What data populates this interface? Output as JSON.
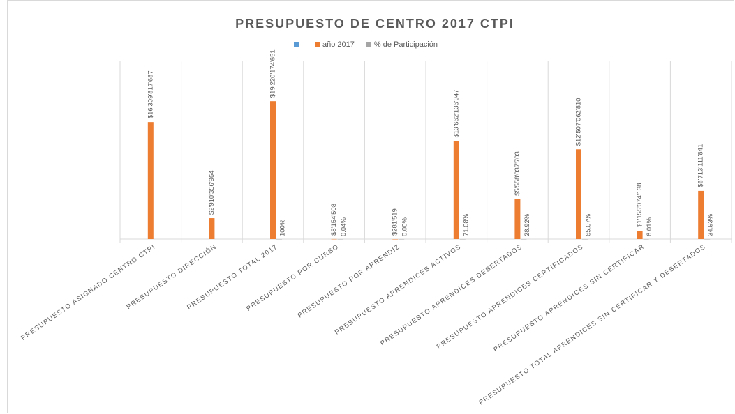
{
  "chart_data": {
    "type": "bar",
    "title": "PRESUPUESTO DE CENTRO 2017 CTPI",
    "categories": [
      "PRESUPUESTO ASIGNADO CENTRO CTPI",
      "PRESUPUESTO DIRECCIÓN",
      "PRESUPUESTO TOTAL 2017",
      "PRESUPUESTO POR CURSO",
      "PRESUPUESTO POR APRENDIZ",
      "PRESUPUESTO APRENDICES ACTIVOS",
      "PRESUPUESTO APRENDICES DESERTADOS",
      "PRESUPUESTO APRENDICES CERTIFICADOS",
      "PRESUPUESTO APRENDICES SIN CERTIFICAR",
      "PRESUPUESTO TOTAL APRENDICES SIN CERTIFICAR Y DESERTADOS"
    ],
    "ylim": [
      0,
      24000000000
    ],
    "series": [
      {
        "color": "#5b9bd5",
        "values": [
          null,
          null,
          null,
          null,
          null,
          null,
          null,
          null,
          null,
          null
        ]
      },
      {
        "name": "año 2017",
        "color": "#ed7d31",
        "values": [
          16309817687,
          2910356964,
          19220174651,
          8154508,
          281519,
          13662136947,
          5558037703,
          12507062810,
          1155074138,
          6713111841
        ],
        "value_labels": [
          "$16'309'817'687",
          "$2'910'356'964",
          "$19'220'174'651",
          "$8'154'508",
          "$281'519",
          "$13'662'136'947",
          "$5'558'037'703",
          "$12'507'062'810",
          "$1'155'074'138",
          "$6'713'111'841"
        ]
      },
      {
        "name": "% de Participación",
        "color": "#a5a5a5",
        "values": [
          null,
          null,
          100,
          0.04,
          0.0,
          71.08,
          28.92,
          65.07,
          6.01,
          34.93
        ],
        "value_labels": [
          null,
          null,
          "100%",
          "0.04%",
          "0.00%",
          "71.08%",
          "28.92%",
          "65.07%",
          "6.01%",
          "34.93%"
        ]
      }
    ]
  }
}
